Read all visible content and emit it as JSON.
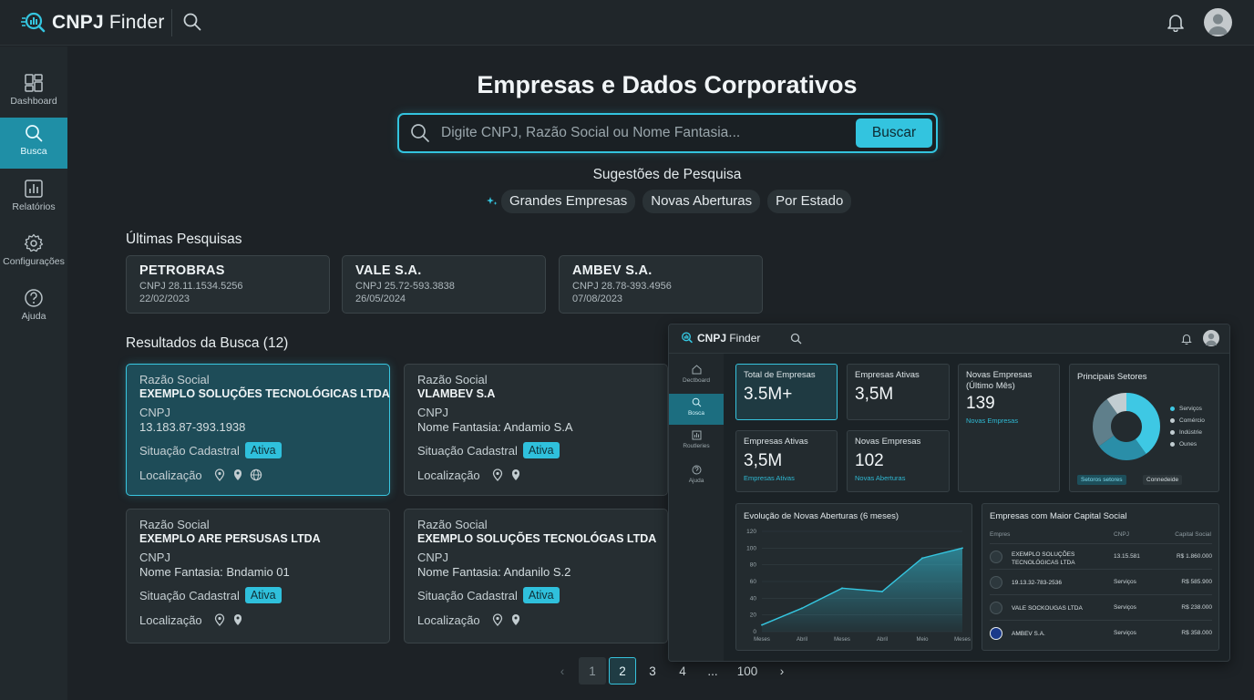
{
  "app": {
    "name_bold": "CNPJ",
    "name_rest": " Finder"
  },
  "sidebar": {
    "items": [
      {
        "label": "Dashboard",
        "icon": "dashboard-icon"
      },
      {
        "label": "Busca",
        "icon": "search-icon",
        "active": true
      },
      {
        "label": "Relatórios",
        "icon": "reports-icon"
      },
      {
        "label": "Configurações",
        "icon": "settings-icon"
      },
      {
        "label": "Ajuda",
        "icon": "help-icon"
      }
    ]
  },
  "main": {
    "title": "Empresas e Dados Corporativos",
    "search": {
      "placeholder": "Digite CNPJ, Razão Social ou Nome Fantasia...",
      "value": "",
      "button": "Buscar"
    },
    "suggestions": {
      "title": "Sugestões de Pesquisa",
      "chips": [
        "Grandes Empresas",
        "Novas Aberturas",
        "Por Estado"
      ]
    },
    "recent": {
      "title": "Últimas Pesquisas",
      "items": [
        {
          "name": "PETROBRAS",
          "cnpj": "CNPJ 28.11.1534.5256",
          "date": "22/02/2023"
        },
        {
          "name": "VALE S.A.",
          "cnpj": "CNPJ 25.72-593.3838",
          "date": "26/05/2024"
        },
        {
          "name": "AMBEV S.A.",
          "cnpj": "CNPJ 28.78-393.4956",
          "date": "07/08/2023"
        }
      ]
    },
    "results": {
      "title": "Resultados da Busca (12)",
      "labels": {
        "razao": "Razão Social",
        "cnpj": "CNPJ",
        "situacao": "Situação Cadastral",
        "localizacao": "Localização"
      },
      "items": [
        {
          "name": "EXEMPLO SOLUÇÕES TECNOLÓGICAS LTDA",
          "value": "13.183.87-393.1938",
          "status": "Ativa"
        },
        {
          "name": "VLAMBEV S.A",
          "value": "Nome Fantasia: Andamio S.A",
          "status": "Ativa"
        },
        {
          "name": "EXEMPLO ARE PERSUSAS LTDA",
          "value": "Nome Fantasia: Bndamio 01",
          "status": "Ativa"
        },
        {
          "name": "EXEMPLO SOLUÇÕES TECNOLÓGAS LTDA",
          "value": "Nome Fantasia: Andanilo S.2",
          "status": "Ativa"
        }
      ]
    },
    "pagination": {
      "prev": "‹",
      "next": "›",
      "pages": [
        "1",
        "2",
        "3",
        "4",
        "...",
        "100"
      ],
      "current": "2"
    }
  },
  "preview": {
    "brand_bold": "CNPJ",
    "brand_rest": " Finder",
    "sidebar": [
      "Dectboard",
      "Bosca",
      "Routleries",
      "Ajuda"
    ],
    "stats": [
      {
        "label": "Total de Empresas",
        "value": "3.5M+",
        "sub": ""
      },
      {
        "label": "Empresas Ativas",
        "value": "3,5M",
        "sub": ""
      },
      {
        "label": "Novas Empresas (Último Mês)",
        "value": "139",
        "sub": "Novas Empresas"
      },
      {
        "label": "Empresas Ativas",
        "value": "3,5M",
        "sub": "Empresas Ativas"
      },
      {
        "label": "Novas Empresas",
        "value": "102",
        "sub": "Novas Aberturas"
      }
    ],
    "sectors": {
      "title": "Principais Setores",
      "legend": [
        "Serviços",
        "Comércio",
        "Indústrie",
        "Ounes"
      ],
      "tabs": [
        "Setoros setores",
        "Connedeide"
      ]
    },
    "chart": {
      "title": "Evolução de Novas Aberturas (6 meses)"
    },
    "table": {
      "title": "Empresas com Maior Capital Social",
      "headers": [
        "Empres",
        "CNPJ",
        "Capital Social"
      ],
      "rows": [
        {
          "name": "EXEMPLO SOLUÇÕES TECNOLÓGICAS LTDA",
          "cnpj": "13.15.581",
          "capital": "R$ 1.860.000"
        },
        {
          "name": "19.13.32-783-2536",
          "cnpj": "Serviços",
          "capital": "R$ 585.900"
        },
        {
          "name": "VALE SOCKOUGAS LTDA",
          "cnpj": "Serviços",
          "capital": "R$ 238.000"
        },
        {
          "name": "AMBEV S.A.",
          "cnpj": "Serviços",
          "capital": "R$ 358.000"
        }
      ]
    }
  },
  "chart_data": {
    "type": "area",
    "title": "Evolução de Novas Aberturas (6 meses)",
    "categories": [
      "Meses",
      "Abril",
      "Meses",
      "Abril",
      "Meio",
      "Meses"
    ],
    "series": [
      {
        "values": [
          8,
          28,
          52,
          48,
          88,
          100
        ]
      }
    ],
    "yticks": [
      0,
      20,
      40,
      60,
      80,
      100,
      120
    ],
    "ylim": [
      0,
      120
    ],
    "grid": true,
    "color": "#35c6e0"
  },
  "colors": {
    "accent": "#33c4df",
    "background": "#1d2226",
    "panel": "#262e32"
  }
}
